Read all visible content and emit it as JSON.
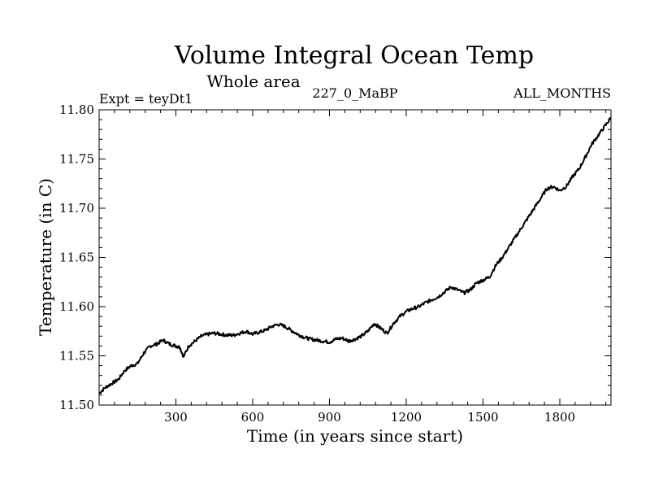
{
  "chart_data": {
    "type": "line",
    "title": "Volume Integral Ocean Temp",
    "subtitle": "Whole area",
    "annotations": {
      "experiment": "Expt = teyDt1",
      "run": "227_0_MaBP",
      "months": "ALL_MONTHS"
    },
    "xlabel": "Time (in years since start)",
    "ylabel": "Temperature (in C)",
    "xlim": [
      0,
      2000
    ],
    "ylim": [
      11.5,
      11.8
    ],
    "xticks": [
      300,
      600,
      900,
      1200,
      1500,
      1800
    ],
    "xtick_labels": [
      "300",
      "600",
      "900",
      "1200",
      "1500",
      "1800"
    ],
    "yticks": [
      11.5,
      11.55,
      11.6,
      11.65,
      11.7,
      11.75,
      11.8
    ],
    "ytick_labels": [
      "11.50",
      "11.55",
      "11.60",
      "11.65",
      "11.70",
      "11.75",
      "11.80"
    ],
    "grid": false,
    "series": [
      {
        "name": "Volume Integral Ocean Temp",
        "x": [
          0,
          25,
          50,
          75,
          100,
          125,
          150,
          175,
          200,
          225,
          250,
          275,
          300,
          315,
          330,
          350,
          375,
          400,
          425,
          450,
          475,
          500,
          525,
          550,
          575,
          600,
          625,
          650,
          675,
          700,
          725,
          750,
          775,
          800,
          825,
          850,
          875,
          900,
          925,
          950,
          975,
          1000,
          1025,
          1050,
          1075,
          1100,
          1125,
          1150,
          1175,
          1200,
          1225,
          1250,
          1275,
          1300,
          1325,
          1350,
          1375,
          1400,
          1425,
          1450,
          1475,
          1500,
          1525,
          1550,
          1575,
          1600,
          1625,
          1650,
          1675,
          1700,
          1725,
          1750,
          1775,
          1800,
          1825,
          1850,
          1875,
          1900,
          1925,
          1950,
          1975,
          2000
        ],
        "values": [
          11.512,
          11.518,
          11.522,
          11.526,
          11.535,
          11.54,
          11.542,
          11.553,
          11.56,
          11.562,
          11.566,
          11.562,
          11.56,
          11.559,
          11.549,
          11.56,
          11.565,
          11.57,
          11.572,
          11.573,
          11.572,
          11.571,
          11.571,
          11.573,
          11.575,
          11.572,
          11.574,
          11.576,
          11.58,
          11.582,
          11.58,
          11.576,
          11.572,
          11.569,
          11.567,
          11.566,
          11.565,
          11.564,
          11.567,
          11.568,
          11.565,
          11.567,
          11.57,
          11.575,
          11.583,
          11.578,
          11.573,
          11.583,
          11.59,
          11.595,
          11.598,
          11.6,
          11.604,
          11.607,
          11.61,
          11.615,
          11.62,
          11.617,
          11.614,
          11.617,
          11.624,
          11.627,
          11.63,
          11.642,
          11.65,
          11.66,
          11.67,
          11.68,
          11.69,
          11.7,
          11.71,
          11.72,
          11.722,
          11.718,
          11.722,
          11.732,
          11.74,
          11.752,
          11.765,
          11.774,
          11.783,
          11.792
        ]
      }
    ]
  }
}
